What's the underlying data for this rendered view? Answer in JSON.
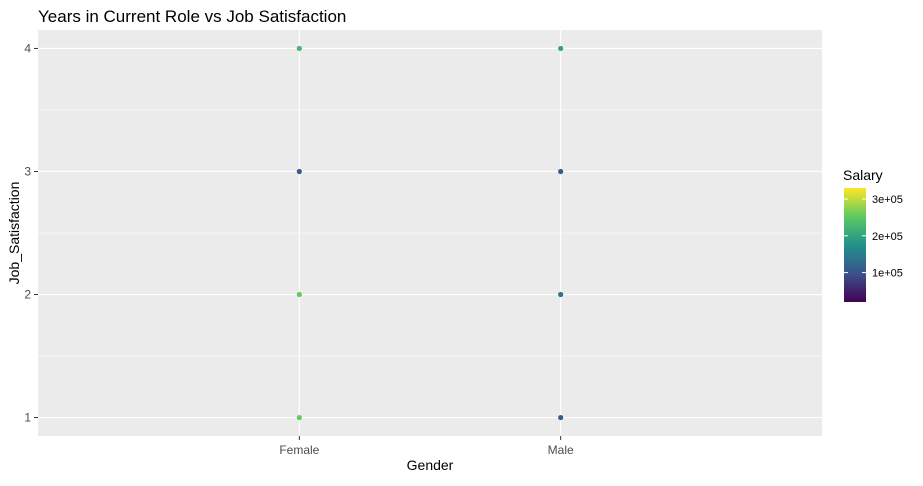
{
  "chart_data": {
    "type": "scatter",
    "title": "Years in Current Role vs Job Satisfaction",
    "xlabel": "Gender",
    "ylabel": "Job_Satisfaction",
    "categories": [
      "Female",
      "Male"
    ],
    "yticks": [
      "1",
      "2",
      "3",
      "4"
    ],
    "ylim": [
      0.85,
      4.15
    ],
    "grid": true,
    "legend": {
      "title": "Salary",
      "position": "right",
      "labels": [
        "1e+05",
        "2e+05",
        "3e+05"
      ],
      "range": [
        20000,
        330000
      ],
      "colors": [
        "#440154",
        "#3b528b",
        "#21918c",
        "#5ec962",
        "#fde725"
      ]
    },
    "points": [
      {
        "x": "Female",
        "y": 4,
        "salary": 225000
      },
      {
        "x": "Female",
        "y": 3,
        "salary": 110000
      },
      {
        "x": "Female",
        "y": 2,
        "salary": 255000
      },
      {
        "x": "Female",
        "y": 1,
        "salary": 255000
      },
      {
        "x": "Male",
        "y": 4,
        "salary": 200000
      },
      {
        "x": "Male",
        "y": 3,
        "salary": 110000
      },
      {
        "x": "Male",
        "y": 2,
        "salary": 140000
      },
      {
        "x": "Male",
        "y": 1,
        "salary": 110000
      }
    ],
    "panel_bg": "#ebebeb",
    "grid_color": "#ffffff"
  }
}
